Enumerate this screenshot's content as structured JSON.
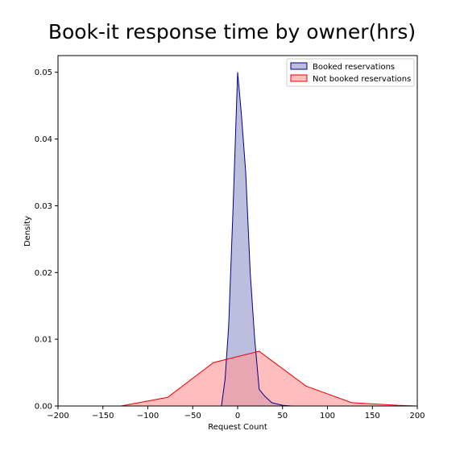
{
  "chart_data": {
    "type": "area",
    "title": "Book-it response time by owner(hrs)",
    "xlabel": "Request Count",
    "ylabel": "Density",
    "xlim": [
      -200,
      200
    ],
    "ylim": [
      0,
      0.0525
    ],
    "xticks": [
      -200,
      -150,
      -100,
      -50,
      0,
      50,
      100,
      150,
      200
    ],
    "yticks": [
      0.0,
      0.01,
      0.02,
      0.03,
      0.04,
      0.05
    ],
    "xtick_labels": [
      "−200",
      "−150",
      "−100",
      "−50",
      "0",
      "50",
      "100",
      "150",
      "200"
    ],
    "ytick_labels": [
      "0.00",
      "0.01",
      "0.02",
      "0.03",
      "0.04",
      "0.05"
    ],
    "legend_position": "upper right",
    "grid": false,
    "series": [
      {
        "name": "Booked reservations",
        "line_color": "#00008b",
        "fill_color": "#9999cc",
        "x": [
          -18,
          -14,
          -10,
          -5,
          0,
          4,
          9,
          14,
          19,
          24,
          30,
          38,
          50,
          60
        ],
        "y": [
          0,
          0.004,
          0.012,
          0.03,
          0.05,
          0.044,
          0.035,
          0.02,
          0.01,
          0.0025,
          0.0015,
          0.0005,
          0.0001,
          0
        ]
      },
      {
        "name": "Not booked reservations",
        "line_color": "#ee0000",
        "fill_color": "#ff9999",
        "x": [
          -130,
          -78,
          -27,
          24,
          76,
          127,
          178,
          200
        ],
        "y": [
          0,
          0.0013,
          0.0065,
          0.0082,
          0.003,
          0.0005,
          0.0001,
          0
        ]
      }
    ]
  }
}
